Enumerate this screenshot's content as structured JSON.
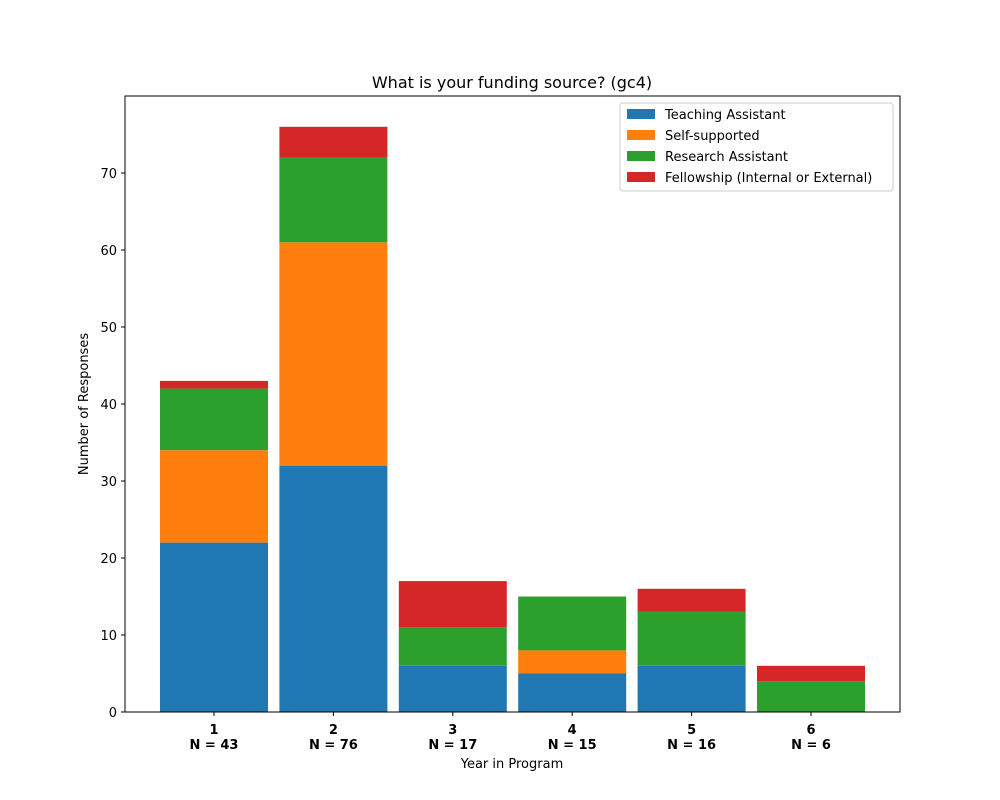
{
  "chart_data": {
    "type": "bar",
    "stacked": true,
    "title": "What is your funding source? (gc4)",
    "xlabel": "Year in Program",
    "ylabel": "Number of Responses",
    "categories": [
      "1",
      "2",
      "3",
      "4",
      "5",
      "6"
    ],
    "category_sublabels": [
      "N = 43",
      "N = 76",
      "N = 17",
      "N = 15",
      "N = 16",
      "N = 6"
    ],
    "ylim": [
      0,
      80
    ],
    "yticks": [
      0,
      10,
      20,
      30,
      40,
      50,
      60,
      70
    ],
    "grid": false,
    "legend_position": "top-right",
    "series": [
      {
        "name": "Teaching Assistant",
        "color": "#1f77b4",
        "values": [
          22,
          32,
          6,
          5,
          6,
          0
        ]
      },
      {
        "name": "Self-supported",
        "color": "#ff7f0e",
        "values": [
          12,
          29,
          0,
          3,
          0,
          0
        ]
      },
      {
        "name": "Research Assistant",
        "color": "#2ca02c",
        "values": [
          8,
          11,
          5,
          7,
          7,
          4
        ]
      },
      {
        "name": "Fellowship (Internal or External)",
        "color": "#d62728",
        "values": [
          1,
          4,
          6,
          0,
          3,
          2
        ]
      }
    ]
  }
}
